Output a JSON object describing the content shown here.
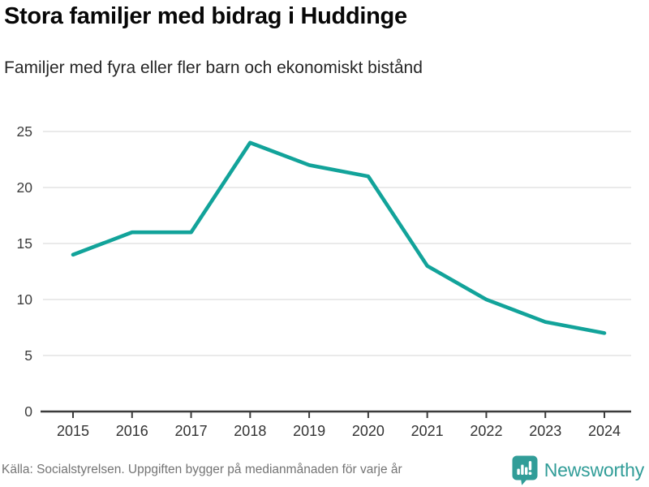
{
  "header": {
    "title": "Stora familjer med bidrag i Huddinge",
    "subtitle": "Familjer med fyra eller fler barn och ekonomiskt bistånd"
  },
  "chart_data": {
    "type": "line",
    "title": "Stora familjer med bidrag i Huddinge",
    "subtitle": "Familjer med fyra eller fler barn och ekonomiskt bistånd",
    "x": [
      2015,
      2016,
      2017,
      2018,
      2019,
      2020,
      2021,
      2022,
      2023,
      2024
    ],
    "values": [
      14,
      16,
      16,
      24,
      22,
      21,
      13,
      10,
      8,
      7
    ],
    "ylim": [
      0,
      25
    ],
    "yticks": [
      0,
      5,
      10,
      15,
      20,
      25
    ],
    "grid": true,
    "legend": "none",
    "line_color": "#12a39a"
  },
  "footer": {
    "source": "Källa: Socialstyrelsen. Uppgiften bygger på medianmånaden för varje år",
    "brand": "Newsworthy",
    "brand_color": "#319d98"
  }
}
